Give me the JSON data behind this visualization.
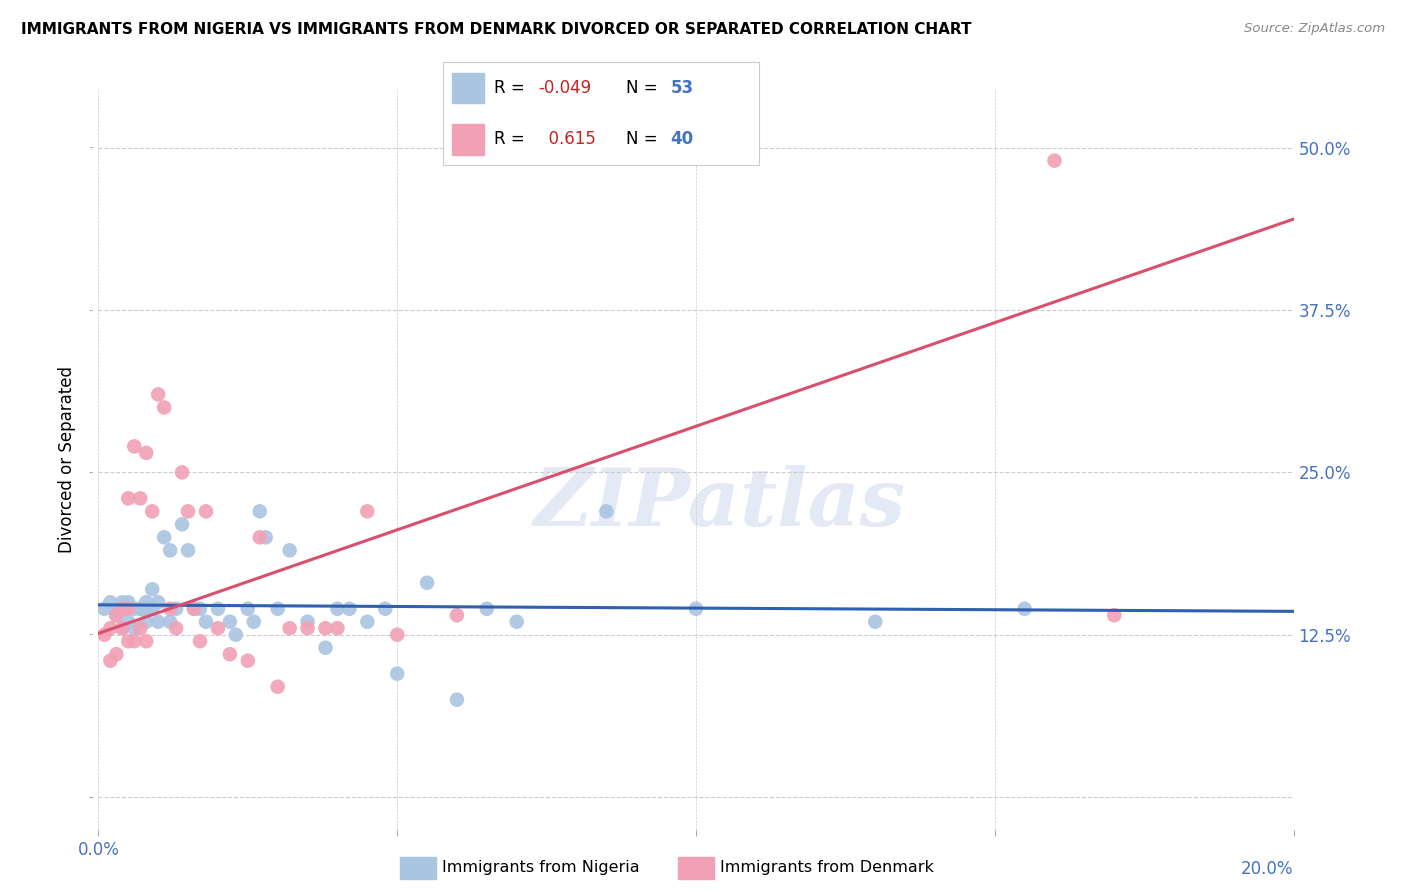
{
  "title": "IMMIGRANTS FROM NIGERIA VS IMMIGRANTS FROM DENMARK DIVORCED OR SEPARATED CORRELATION CHART",
  "source": "Source: ZipAtlas.com",
  "xlabel_nigeria": "Immigrants from Nigeria",
  "xlabel_denmark": "Immigrants from Denmark",
  "ylabel": "Divorced or Separated",
  "xlim": [
    0.0,
    0.2
  ],
  "ylim": [
    -0.025,
    0.545
  ],
  "yticks": [
    0.0,
    0.125,
    0.25,
    0.375,
    0.5
  ],
  "ytick_labels": [
    "",
    "12.5%",
    "25.0%",
    "37.5%",
    "50.0%"
  ],
  "xticks": [
    0.0,
    0.05,
    0.1,
    0.15,
    0.2
  ],
  "nigeria_color": "#aac4e2",
  "denmark_color": "#f2a0b5",
  "nigeria_line_color": "#3060b0",
  "denmark_line_color": "#d94f6e",
  "R_nigeria": -0.049,
  "N_nigeria": 53,
  "R_denmark": 0.615,
  "N_denmark": 40,
  "watermark": "ZIPatlas",
  "ng_line_x0": 0.0,
  "ng_line_y0": 0.148,
  "ng_line_x1": 0.2,
  "ng_line_y1": 0.143,
  "dk_line_x0": 0.0,
  "dk_line_y0": 0.126,
  "dk_line_x1": 0.2,
  "dk_line_y1": 0.445,
  "nigeria_x": [
    0.001,
    0.002,
    0.003,
    0.003,
    0.004,
    0.004,
    0.005,
    0.005,
    0.005,
    0.006,
    0.006,
    0.007,
    0.007,
    0.008,
    0.008,
    0.008,
    0.009,
    0.009,
    0.01,
    0.01,
    0.011,
    0.012,
    0.012,
    0.013,
    0.014,
    0.015,
    0.016,
    0.017,
    0.018,
    0.02,
    0.022,
    0.023,
    0.025,
    0.026,
    0.027,
    0.028,
    0.03,
    0.032,
    0.035,
    0.038,
    0.04,
    0.042,
    0.045,
    0.048,
    0.05,
    0.055,
    0.06,
    0.065,
    0.07,
    0.085,
    0.1,
    0.13,
    0.155
  ],
  "nigeria_y": [
    0.145,
    0.15,
    0.14,
    0.145,
    0.15,
    0.13,
    0.145,
    0.135,
    0.15,
    0.145,
    0.13,
    0.145,
    0.145,
    0.15,
    0.135,
    0.145,
    0.16,
    0.145,
    0.135,
    0.15,
    0.2,
    0.19,
    0.135,
    0.145,
    0.21,
    0.19,
    0.145,
    0.145,
    0.135,
    0.145,
    0.135,
    0.125,
    0.145,
    0.135,
    0.22,
    0.2,
    0.145,
    0.19,
    0.135,
    0.115,
    0.145,
    0.145,
    0.135,
    0.145,
    0.095,
    0.165,
    0.075,
    0.145,
    0.135,
    0.22,
    0.145,
    0.135,
    0.145
  ],
  "denmark_x": [
    0.001,
    0.002,
    0.002,
    0.003,
    0.003,
    0.004,
    0.004,
    0.005,
    0.005,
    0.005,
    0.006,
    0.006,
    0.007,
    0.007,
    0.008,
    0.008,
    0.009,
    0.01,
    0.011,
    0.012,
    0.013,
    0.014,
    0.015,
    0.016,
    0.017,
    0.018,
    0.02,
    0.022,
    0.025,
    0.027,
    0.03,
    0.032,
    0.035,
    0.038,
    0.04,
    0.045,
    0.05,
    0.06,
    0.16,
    0.17
  ],
  "denmark_y": [
    0.125,
    0.13,
    0.105,
    0.14,
    0.11,
    0.13,
    0.145,
    0.23,
    0.12,
    0.145,
    0.12,
    0.27,
    0.23,
    0.13,
    0.12,
    0.265,
    0.22,
    0.31,
    0.3,
    0.145,
    0.13,
    0.25,
    0.22,
    0.145,
    0.12,
    0.22,
    0.13,
    0.11,
    0.105,
    0.2,
    0.085,
    0.13,
    0.13,
    0.13,
    0.13,
    0.22,
    0.125,
    0.14,
    0.49,
    0.14
  ]
}
